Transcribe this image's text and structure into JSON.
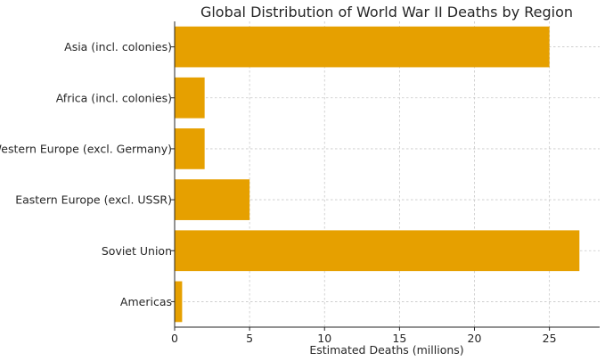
{
  "chart_data": {
    "type": "bar",
    "orientation": "horizontal",
    "title": "Global Distribution of World War II Deaths by Region",
    "xlabel": "Estimated Deaths (millions)",
    "ylabel": "",
    "xlim": [
      0,
      28.35
    ],
    "xticks": [
      0,
      5,
      10,
      15,
      20,
      25
    ],
    "grid": true,
    "bar_color": "#E6A000",
    "categories": [
      "Asia (incl. colonies)",
      "Africa (incl. colonies)",
      "Western Europe (excl. Germany)",
      "Eastern Europe (excl. USSR)",
      "Soviet Union",
      "Americas"
    ],
    "values": [
      25,
      2,
      2,
      5,
      27,
      0.5
    ]
  }
}
